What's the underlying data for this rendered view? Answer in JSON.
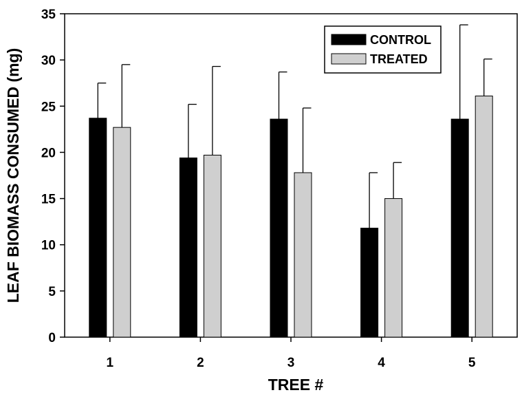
{
  "chart_data": {
    "type": "bar",
    "title": "",
    "xlabel": "TREE #",
    "ylabel": "LEAF BIOMASS CONSUMED (mg)",
    "categories": [
      "1",
      "2",
      "3",
      "4",
      "5"
    ],
    "ylim": [
      0,
      35
    ],
    "yticks": [
      0,
      5,
      10,
      15,
      20,
      25,
      30,
      35
    ],
    "grid": false,
    "legend_position": "top-right",
    "error_bars": "upper",
    "series": [
      {
        "name": "CONTROL",
        "color": "#000000",
        "values": [
          23.7,
          19.4,
          23.6,
          11.8,
          23.6
        ],
        "error_upper": [
          27.5,
          25.2,
          28.7,
          17.8,
          33.8
        ]
      },
      {
        "name": "TREATED",
        "color": "#cfcfcf",
        "values": [
          22.7,
          19.7,
          17.8,
          15.0,
          26.1
        ],
        "error_upper": [
          29.5,
          29.3,
          24.8,
          18.9,
          30.1
        ]
      }
    ]
  }
}
